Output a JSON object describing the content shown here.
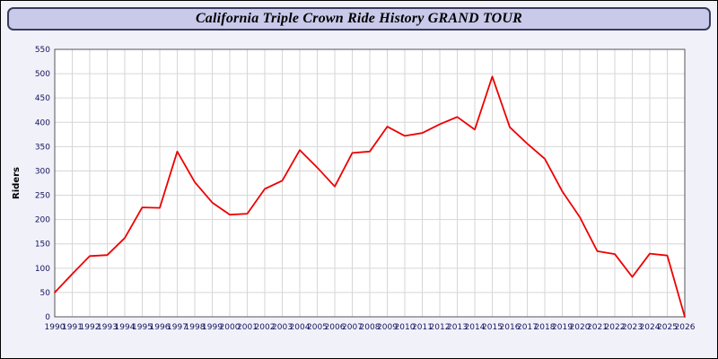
{
  "header": {
    "title": "California Triple Crown Ride History GRAND TOUR"
  },
  "chart_data": {
    "type": "line",
    "title": "California Triple Crown Ride History GRAND TOUR",
    "xlabel": "",
    "ylabel": "Riders",
    "ylim": [
      0,
      550
    ],
    "ytick_step": 50,
    "grid": true,
    "legend": "none",
    "x": [
      1990,
      1991,
      1992,
      1993,
      1994,
      1995,
      1996,
      1997,
      1998,
      1999,
      2000,
      2001,
      2002,
      2003,
      2004,
      2005,
      2006,
      2007,
      2008,
      2009,
      2010,
      2011,
      2012,
      2013,
      2014,
      2015,
      2016,
      2017,
      2018,
      2019,
      2020,
      2021,
      2022,
      2023,
      2024,
      2025,
      2026
    ],
    "values": [
      50,
      88,
      125,
      127,
      162,
      225,
      224,
      340,
      277,
      235,
      210,
      212,
      263,
      280,
      343,
      307,
      268,
      337,
      340,
      391,
      372,
      378,
      396,
      411,
      385,
      494,
      390,
      356,
      325,
      258,
      205,
      135,
      129,
      82,
      130,
      126,
      0
    ],
    "colors": {
      "line": "#ee0000",
      "plot_background": "#ffffff",
      "page_background": "#f1f1fa",
      "grid": "#d6d6d6",
      "axis_frame": "#555555",
      "tick_text": "#14145a",
      "title_bar_fill": "#c9c9ea",
      "title_bar_border": "#3a3a5e"
    }
  }
}
